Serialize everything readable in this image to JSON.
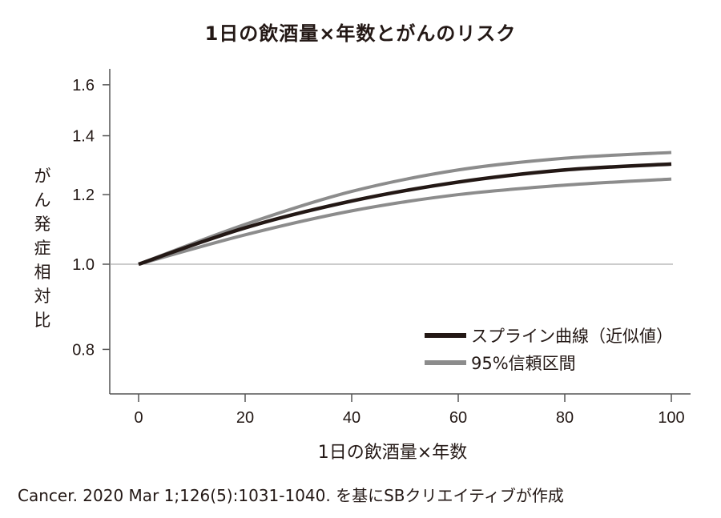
{
  "chart_data": {
    "type": "line",
    "title": "1日の飲酒量×年数とがんのリスク",
    "xlabel": "1日の飲酒量×年数",
    "ylabel": "がん発症相対比",
    "xlim": [
      0,
      100
    ],
    "ylim": [
      0.7,
      1.65
    ],
    "yscale": "log",
    "x_ticks": [
      "0",
      "20",
      "40",
      "60",
      "80",
      "100"
    ],
    "y_ticks": [
      "0.8",
      "1.0",
      "1.2",
      "1.4",
      "1.6"
    ],
    "reference_line": 1.0,
    "x": [
      0,
      20,
      40,
      60,
      80,
      100
    ],
    "series": [
      {
        "name": "スプライン曲線（近似値）",
        "color": "#231815",
        "values": [
          1.0,
          1.1,
          1.18,
          1.24,
          1.28,
          1.3
        ]
      },
      {
        "name": "95%信頼区間 (上限)",
        "color": "#8c8c8c",
        "values": [
          1.0,
          1.11,
          1.21,
          1.28,
          1.32,
          1.34
        ]
      },
      {
        "name": "95%信頼区間 (下限)",
        "color": "#8c8c8c",
        "values": [
          1.0,
          1.08,
          1.15,
          1.2,
          1.23,
          1.25
        ]
      }
    ],
    "legend": [
      {
        "label": "スプライン曲線（近似値）",
        "color": "#231815"
      },
      {
        "label": "95%信頼区間",
        "color": "#8c8c8c"
      }
    ],
    "legend_position": "lower right",
    "grid": false
  },
  "ylabel_chars": [
    "が",
    "ん",
    "発",
    "症",
    "相",
    "対",
    "比"
  ],
  "source": "Cancer. 2020 Mar 1;126(5):1031-1040. を基にSBクリエイティブが作成"
}
